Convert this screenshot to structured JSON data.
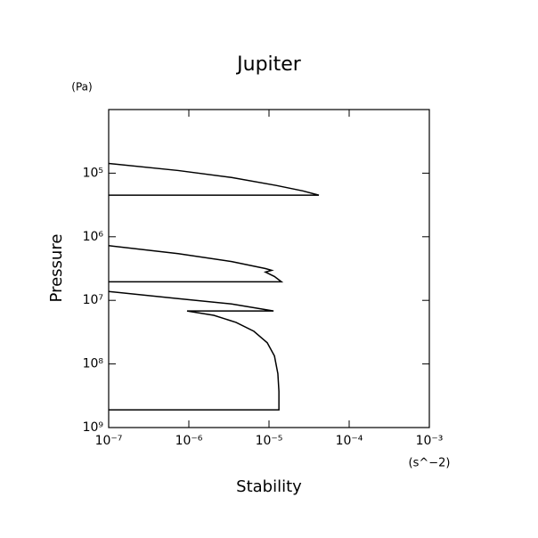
{
  "chart_data": {
    "type": "line",
    "title": "Jupiter",
    "x_label": "Stability",
    "y_label": "Pressure",
    "x_unit": "(s^−2)",
    "y_unit": "(Pa)",
    "x_log": true,
    "y_log": true,
    "y_inverted": true,
    "xlim": [
      1e-07,
      0.001
    ],
    "ylim": [
      10000.0,
      1000000000.0
    ],
    "xticks": [
      {
        "value": 1e-07,
        "label": "10⁻⁷"
      },
      {
        "value": 1e-06,
        "label": "10⁻⁶"
      },
      {
        "value": 1e-05,
        "label": "10⁻⁵"
      },
      {
        "value": 0.0001,
        "label": "10⁻⁴"
      },
      {
        "value": 0.001,
        "label": "10⁻³"
      }
    ],
    "yticks": [
      {
        "value": 100000.0,
        "label": "10⁵"
      },
      {
        "value": 1000000.0,
        "label": "10⁶"
      },
      {
        "value": 10000000.0,
        "label": "10⁷"
      },
      {
        "value": 100000000.0,
        "label": "10⁸"
      },
      {
        "value": 1000000000.0,
        "label": "10⁹"
      }
    ],
    "color": "#000000",
    "x": [
      1e-07,
      7.36e-07,
      3.41e-06,
      1.23e-05,
      2.64e-05,
      4.19e-05,
      1e-07,
      null,
      1e-07,
      7.36e-07,
      3.41e-06,
      9.03e-06,
      1.08e-05,
      9.03e-06,
      1.17e-05,
      1.43e-05,
      1e-07,
      null,
      1e-07,
      7.36e-07,
      3.41e-06,
      1.14e-05,
      9.5e-07,
      2.05e-06,
      3.88e-06,
      6.47e-06,
      9.5e-06,
      1.17e-05,
      1.29e-05,
      1.33e-05,
      1.33e-05,
      1e-07
    ],
    "y": [
      70300.0,
      90900.0,
      117000.0,
      156000.0,
      190000.0,
      222000.0,
      222000.0,
      null,
      1380000.0,
      1840000.0,
      2450000.0,
      3160000.0,
      3370000.0,
      3590000.0,
      4220000.0,
      5110000.0,
      5110000.0,
      null,
      7260000.0,
      9380000.0,
      11400000.0,
      14700000.0,
      14700000.0,
      17200000.0,
      22200000.0,
      30600000.0,
      46400000.0,
      75000000.0,
      142000000.0,
      270000000.0,
      527000000.0,
      527000000.0
    ]
  }
}
